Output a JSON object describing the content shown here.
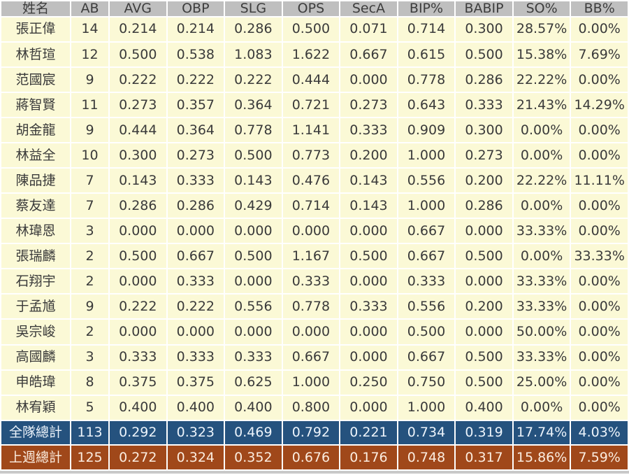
{
  "chart_data": {
    "type": "table",
    "columns": [
      "姓名",
      "AB",
      "AVG",
      "OBP",
      "SLG",
      "OPS",
      "SecA",
      "BIP%",
      "BABIP",
      "SO%",
      "BB%"
    ],
    "rows": [
      {
        "name": "張正偉",
        "values": [
          "14",
          "0.214",
          "0.214",
          "0.286",
          "0.500",
          "0.071",
          "0.714",
          "0.300",
          "28.57%",
          "0.00%"
        ]
      },
      {
        "name": "林哲瑄",
        "values": [
          "12",
          "0.500",
          "0.538",
          "1.083",
          "1.622",
          "0.667",
          "0.615",
          "0.500",
          "15.38%",
          "7.69%"
        ]
      },
      {
        "name": "范國宸",
        "values": [
          "9",
          "0.222",
          "0.222",
          "0.222",
          "0.444",
          "0.000",
          "0.778",
          "0.286",
          "22.22%",
          "0.00%"
        ]
      },
      {
        "name": "蔣智賢",
        "values": [
          "11",
          "0.273",
          "0.357",
          "0.364",
          "0.721",
          "0.273",
          "0.643",
          "0.333",
          "21.43%",
          "14.29%"
        ]
      },
      {
        "name": "胡金龍",
        "values": [
          "9",
          "0.444",
          "0.364",
          "0.778",
          "1.141",
          "0.333",
          "0.909",
          "0.300",
          "0.00%",
          "0.00%"
        ]
      },
      {
        "name": "林益全",
        "values": [
          "10",
          "0.300",
          "0.273",
          "0.500",
          "0.773",
          "0.200",
          "1.000",
          "0.273",
          "0.00%",
          "0.00%"
        ]
      },
      {
        "name": "陳品捷",
        "values": [
          "7",
          "0.143",
          "0.333",
          "0.143",
          "0.476",
          "0.143",
          "0.556",
          "0.200",
          "22.22%",
          "11.11%"
        ]
      },
      {
        "name": "蔡友達",
        "values": [
          "7",
          "0.286",
          "0.286",
          "0.429",
          "0.714",
          "0.143",
          "1.000",
          "0.286",
          "0.00%",
          "0.00%"
        ]
      },
      {
        "name": "林瑋恩",
        "values": [
          "3",
          "0.000",
          "0.000",
          "0.000",
          "0.000",
          "0.000",
          "0.667",
          "0.000",
          "33.33%",
          "0.00%"
        ]
      },
      {
        "name": "張瑞麟",
        "values": [
          "2",
          "0.500",
          "0.667",
          "0.500",
          "1.167",
          "0.500",
          "0.667",
          "0.500",
          "0.00%",
          "33.33%"
        ]
      },
      {
        "name": "石翔宇",
        "values": [
          "2",
          "0.000",
          "0.333",
          "0.000",
          "0.333",
          "0.000",
          "0.333",
          "0.000",
          "33.33%",
          "0.00%"
        ]
      },
      {
        "name": "于孟馗",
        "values": [
          "9",
          "0.222",
          "0.222",
          "0.556",
          "0.778",
          "0.333",
          "0.556",
          "0.200",
          "33.33%",
          "0.00%"
        ]
      },
      {
        "name": "吳宗峻",
        "values": [
          "2",
          "0.000",
          "0.000",
          "0.000",
          "0.000",
          "0.000",
          "0.500",
          "0.000",
          "50.00%",
          "0.00%"
        ]
      },
      {
        "name": "高國麟",
        "values": [
          "3",
          "0.333",
          "0.333",
          "0.333",
          "0.667",
          "0.000",
          "0.667",
          "0.500",
          "33.33%",
          "0.00%"
        ]
      },
      {
        "name": "申皓瑋",
        "values": [
          "8",
          "0.375",
          "0.375",
          "0.625",
          "1.000",
          "0.250",
          "0.750",
          "0.500",
          "25.00%",
          "0.00%"
        ]
      },
      {
        "name": "林宥穎",
        "values": [
          "5",
          "0.400",
          "0.400",
          "0.400",
          "0.800",
          "0.000",
          "1.000",
          "0.400",
          "0.00%",
          "0.00%"
        ]
      }
    ],
    "totals": [
      {
        "id": "team-total",
        "label": "全隊總計",
        "values": [
          "113",
          "0.292",
          "0.323",
          "0.469",
          "0.792",
          "0.221",
          "0.734",
          "0.319",
          "17.74%",
          "4.03%"
        ]
      },
      {
        "id": "lastweek-total",
        "label": "上週總計",
        "values": [
          "125",
          "0.272",
          "0.324",
          "0.352",
          "0.676",
          "0.176",
          "0.748",
          "0.317",
          "15.86%",
          "7.59%"
        ]
      }
    ],
    "layout_hints": {
      "header_bg": "#BFBFBF",
      "row_bg": "#FBF9D6",
      "team_total_bg": "#25527E",
      "lastweek_total_bg": "#A0481A",
      "grid_color": "#FFFFFF",
      "grid": "on"
    }
  }
}
